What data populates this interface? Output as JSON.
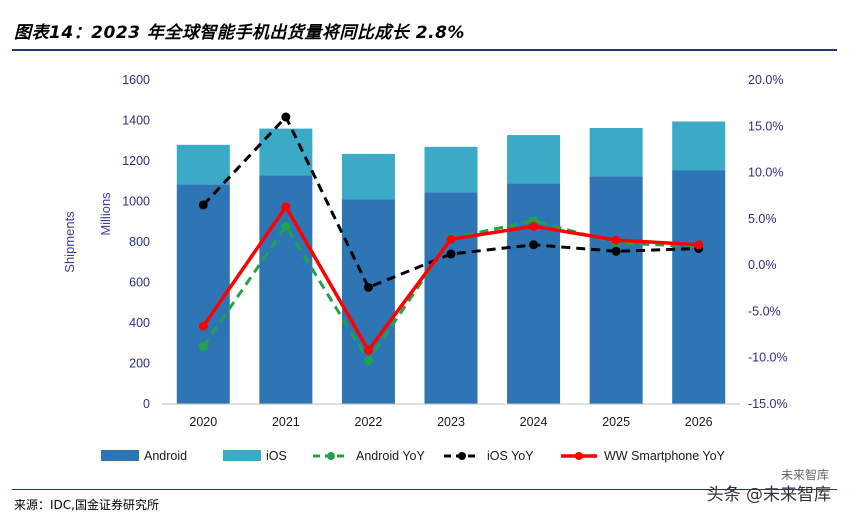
{
  "title": "图表14：2023 年全球智能手机出货量将同比成长 2.8%",
  "source": "来源：IDC,国金证券研究所",
  "watermark": "头条 @未来智库",
  "watermark_small": "未来智库",
  "chart_data": {
    "type": "bar",
    "stacked": true,
    "categories": [
      "2020",
      "2021",
      "2022",
      "2023",
      "2024",
      "2025",
      "2026"
    ],
    "ylabel_left": "Shipments",
    "ylabel_left2": "Millions",
    "ylim_left": [
      0,
      1600
    ],
    "yticks_left": [
      "0",
      "200",
      "400",
      "600",
      "800",
      "1000",
      "1200",
      "1400",
      "1600"
    ],
    "ylim_right": [
      -15,
      20
    ],
    "yticks_right": [
      "-15.0%",
      "-10.0%",
      "-5.0%",
      "0.0%",
      "5.0%",
      "10.0%",
      "15.0%",
      "20.0%"
    ],
    "bar_series": [
      {
        "name": "Android",
        "color": "#2e75b6",
        "values": [
          1085,
          1130,
          1010,
          1045,
          1090,
          1125,
          1155
        ]
      },
      {
        "name": "iOS",
        "color": "#3aaac6",
        "values": [
          195,
          230,
          225,
          225,
          238,
          238,
          240
        ]
      }
    ],
    "line_series": [
      {
        "name": "Android YoY",
        "color": "#22a34a",
        "dash": "dashed",
        "values": [
          -8.8,
          4.2,
          -10.3,
          2.9,
          4.8,
          2.4,
          2.0
        ]
      },
      {
        "name": "iOS YoY",
        "color": "#000000",
        "dash": "dashed",
        "values": [
          6.5,
          16.0,
          -2.4,
          1.2,
          2.2,
          1.5,
          1.8
        ]
      },
      {
        "name": "WW Smartphone YoY",
        "color": "#ff0000",
        "dash": "solid",
        "values": [
          -6.6,
          6.3,
          -9.2,
          2.8,
          4.2,
          2.7,
          2.2
        ]
      }
    ],
    "legend": [
      "Android",
      "iOS",
      "Android YoY",
      "iOS YoY",
      "WW Smartphone YoY"
    ],
    "legend_position": "bottom",
    "grid": false
  }
}
